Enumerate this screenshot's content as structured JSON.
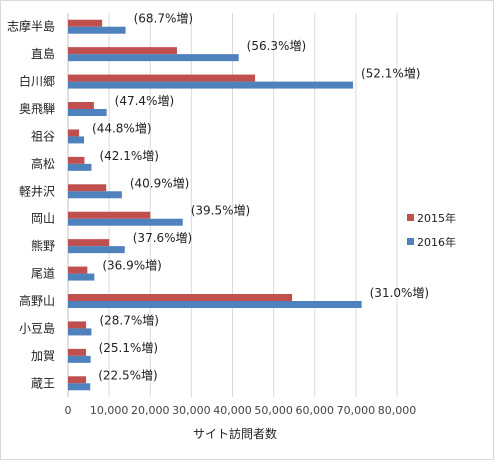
{
  "chart_data": {
    "type": "bar",
    "orientation": "horizontal",
    "categories": [
      "志摩半島",
      "直島",
      "白川郷",
      "奥飛騨",
      "祖谷",
      "高松",
      "軽井沢",
      "岡山",
      "熊野",
      "尾道",
      "高野山",
      "小豆島",
      "加賀",
      "蔵王"
    ],
    "series": [
      {
        "name": "2015年",
        "color": "#c0504d",
        "values": [
          8300,
          26500,
          45500,
          6300,
          2700,
          4000,
          9300,
          20000,
          10000,
          4700,
          54500,
          4400,
          4400,
          4400
        ]
      },
      {
        "name": "2016年",
        "color": "#4f81bd",
        "values": [
          14000,
          41500,
          69300,
          9400,
          3900,
          5700,
          13100,
          27900,
          13800,
          6400,
          71400,
          5700,
          5500,
          5400
        ]
      }
    ],
    "annotations": [
      "(68.7%増)",
      "(56.3%増)",
      "(52.1%増)",
      "(47.4%増)",
      "(44.8%増)",
      "(42.1%増)",
      "(40.9%増)",
      "(39.5%増)",
      "(37.6%増)",
      "(36.9%増)",
      "(31.0%増)",
      "(28.7%増)",
      "(25.1%増)",
      "(22.5%増)"
    ],
    "xlim": [
      0,
      80000
    ],
    "xticks": [
      0,
      10000,
      20000,
      30000,
      40000,
      50000,
      60000,
      70000,
      80000
    ],
    "xtick_labels": [
      "0",
      "10,000",
      "20,000",
      "30,000",
      "40,000",
      "50,000",
      "60,000",
      "70,000",
      "80,000"
    ],
    "xlabel": "サイト訪問者数",
    "ylabel": "",
    "title": "",
    "grid": true,
    "legend_position": "right"
  }
}
